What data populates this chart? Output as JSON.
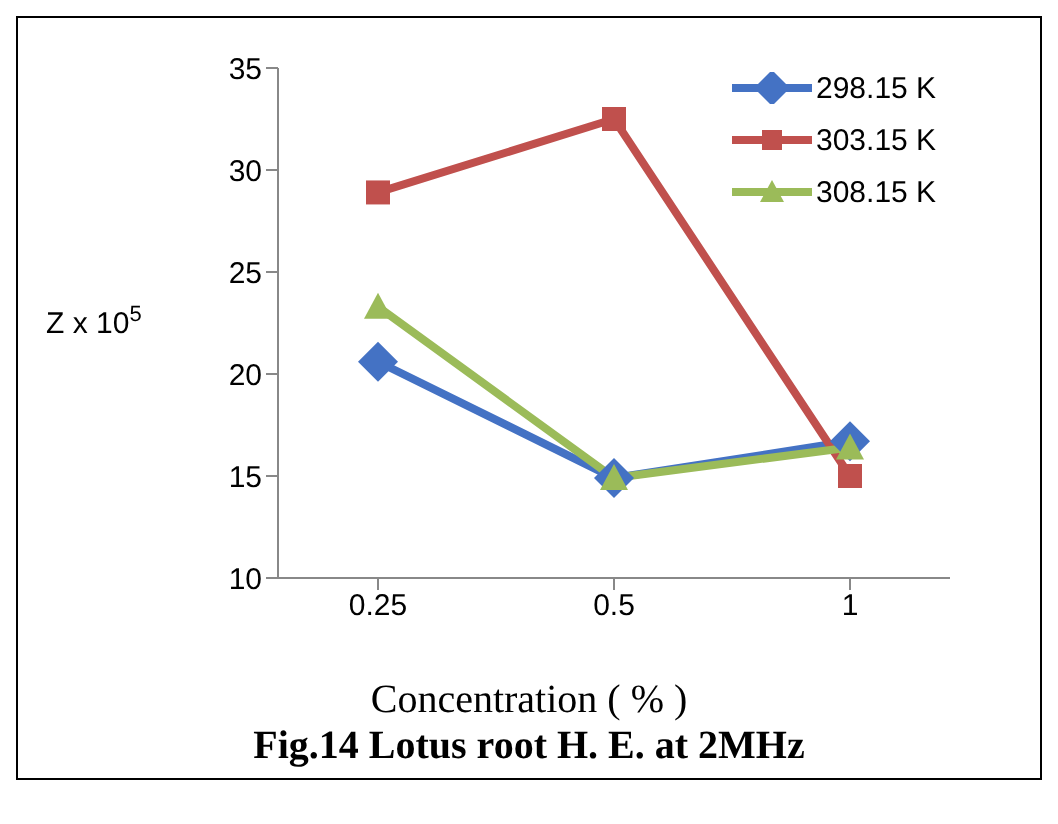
{
  "chart_data": {
    "type": "line",
    "title": "Fig.14 Lotus root H. E. at 2MHz",
    "xlabel": "Concentration ( % )",
    "ylabel": "Z x 10$^{5}$",
    "categories": [
      "0.25",
      "0.5",
      "1"
    ],
    "series": [
      {
        "name": "298.15 K",
        "color": "#4472c4",
        "values": [
          20.6,
          14.9,
          16.7
        ],
        "marker": "diamond"
      },
      {
        "name": "303.15 K",
        "color": "#c0504d",
        "values": [
          28.9,
          32.5,
          15
        ],
        "marker": "square"
      },
      {
        "name": "308.15 K",
        "color": "#9bbb59",
        "values": [
          23.3,
          14.9,
          16.4
        ],
        "marker": "triangle"
      }
    ],
    "ylim": [
      10,
      35
    ],
    "yticks": [
      10,
      15,
      20,
      25,
      30,
      35
    ],
    "legend": "top right"
  }
}
